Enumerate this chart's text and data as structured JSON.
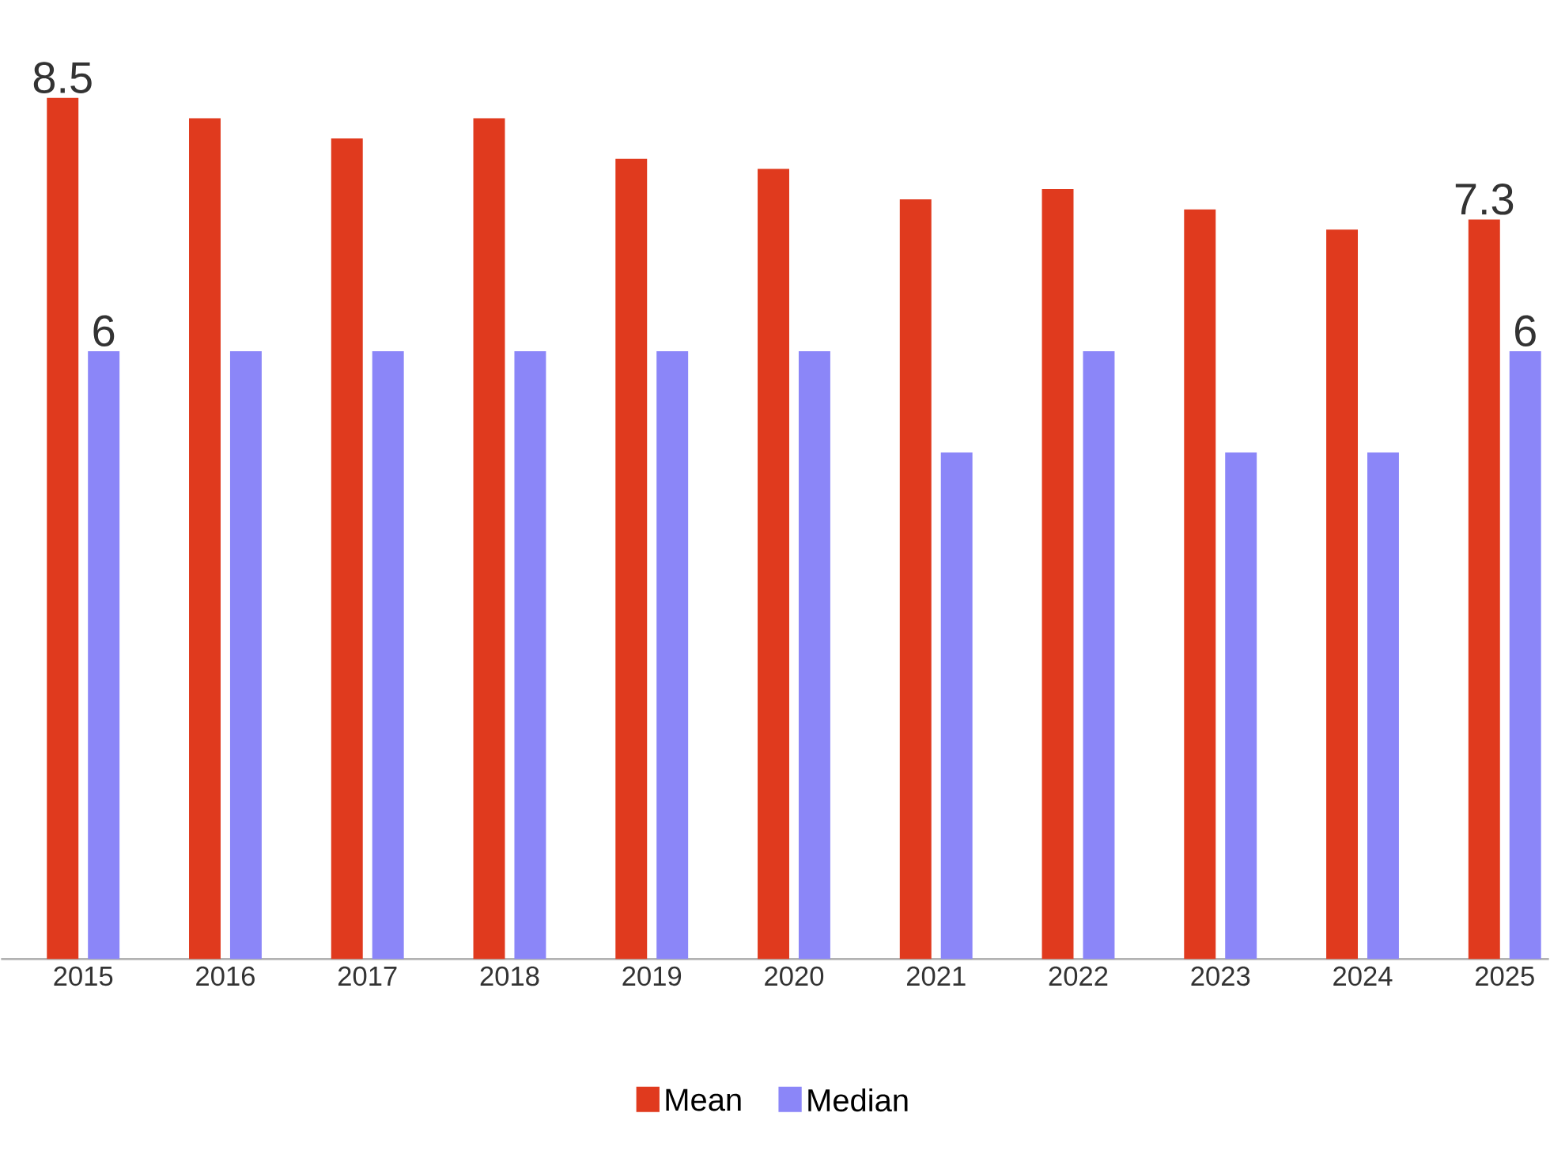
{
  "chart_data": {
    "type": "bar",
    "categories": [
      "2015",
      "2016",
      "2017",
      "2018",
      "2019",
      "2020",
      "2021",
      "2022",
      "2023",
      "2024",
      "2025"
    ],
    "series": [
      {
        "name": "Mean",
        "color": "#e03a1e",
        "values": [
          8.5,
          8.3,
          8.1,
          8.3,
          7.9,
          7.8,
          7.5,
          7.6,
          7.4,
          7.2,
          7.3
        ],
        "value_labels": [
          "8.5",
          null,
          null,
          null,
          null,
          null,
          null,
          null,
          null,
          null,
          "7.3"
        ]
      },
      {
        "name": "Median",
        "color": "#8b86f8",
        "values": [
          6,
          6,
          6,
          6,
          6,
          6,
          5,
          6,
          5,
          5,
          6
        ],
        "value_labels": [
          "6",
          null,
          null,
          null,
          null,
          null,
          null,
          null,
          null,
          null,
          "6"
        ]
      }
    ],
    "tick_labels": "x",
    "legend": "bottom"
  }
}
